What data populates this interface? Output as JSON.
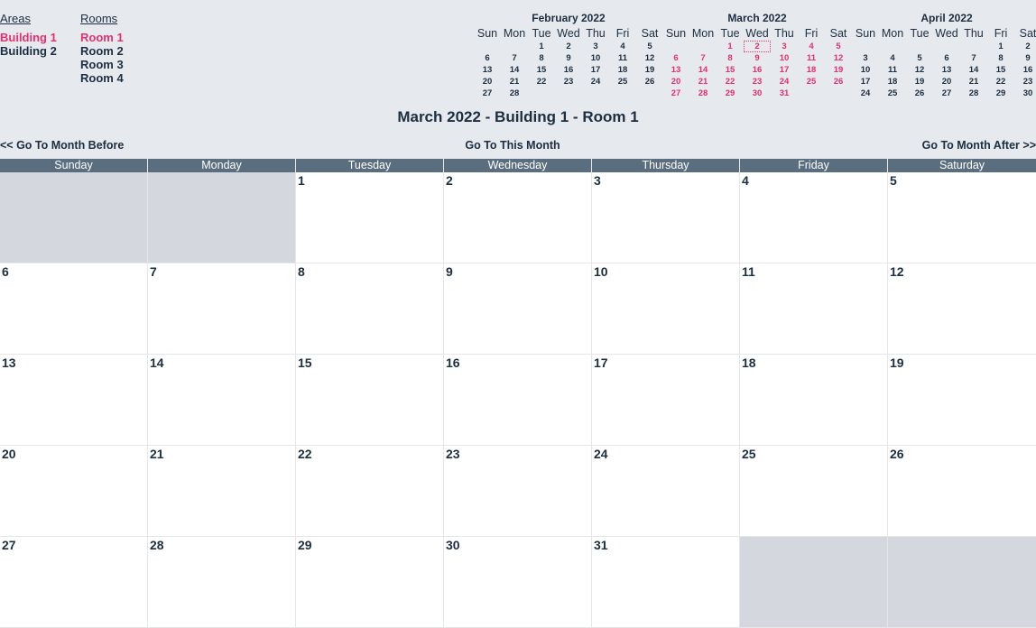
{
  "areas": {
    "heading": "Areas",
    "items": [
      "Building 1",
      "Building 2"
    ]
  },
  "rooms": {
    "heading": "Rooms",
    "items": [
      "Room 1",
      "Room 2",
      "Room 3",
      "Room 4"
    ]
  },
  "mini_calendars": [
    {
      "title": "February 2022",
      "dows": [
        "Sun",
        "Mon",
        "Tue",
        "Wed",
        "Thu",
        "Fri",
        "Sat"
      ],
      "weeks": [
        [
          "",
          "",
          "1",
          "2",
          "3",
          "4",
          "5"
        ],
        [
          "6",
          "7",
          "8",
          "9",
          "10",
          "11",
          "12"
        ],
        [
          "13",
          "14",
          "15",
          "16",
          "17",
          "18",
          "19"
        ],
        [
          "20",
          "21",
          "22",
          "23",
          "24",
          "25",
          "26"
        ],
        [
          "27",
          "28",
          "",
          "",
          "",
          "",
          ""
        ]
      ]
    },
    {
      "title": "March 2022",
      "dows": [
        "Sun",
        "Mon",
        "Tue",
        "Wed",
        "Thu",
        "Fri",
        "Sat"
      ],
      "weeks": [
        [
          "",
          "",
          "1",
          "2",
          "3",
          "4",
          "5"
        ],
        [
          "6",
          "7",
          "8",
          "9",
          "10",
          "11",
          "12"
        ],
        [
          "13",
          "14",
          "15",
          "16",
          "17",
          "18",
          "19"
        ],
        [
          "20",
          "21",
          "22",
          "23",
          "24",
          "25",
          "26"
        ],
        [
          "27",
          "28",
          "29",
          "30",
          "31",
          "",
          ""
        ]
      ]
    },
    {
      "title": "April 2022",
      "dows": [
        "Sun",
        "Mon",
        "Tue",
        "Wed",
        "Thu",
        "Fri",
        "Sat"
      ],
      "weeks": [
        [
          "",
          "",
          "",
          "",
          "",
          "1",
          "2"
        ],
        [
          "3",
          "4",
          "5",
          "6",
          "7",
          "8",
          "9"
        ],
        [
          "10",
          "11",
          "12",
          "13",
          "14",
          "15",
          "16"
        ],
        [
          "17",
          "18",
          "19",
          "20",
          "21",
          "22",
          "23"
        ],
        [
          "24",
          "25",
          "26",
          "27",
          "28",
          "29",
          "30"
        ]
      ]
    }
  ],
  "page_title": "March 2022 - Building 1 - Room 1",
  "nav": {
    "prev": "<< Go To Month Before",
    "current": "Go To This Month",
    "next": "Go To Month After >>"
  },
  "weekdays": [
    "Sunday",
    "Monday",
    "Tuesday",
    "Wednesday",
    "Thursday",
    "Friday",
    "Saturday"
  ],
  "weeks": [
    [
      "",
      "",
      "1",
      "2",
      "3",
      "4",
      "5"
    ],
    [
      "6",
      "7",
      "8",
      "9",
      "10",
      "11",
      "12"
    ],
    [
      "13",
      "14",
      "15",
      "16",
      "17",
      "18",
      "19"
    ],
    [
      "20",
      "21",
      "22",
      "23",
      "24",
      "25",
      "26"
    ],
    [
      "27",
      "28",
      "29",
      "30",
      "31",
      "",
      ""
    ]
  ],
  "colors": {
    "accent": "#e5306d",
    "header_bg": "#5a6e7f",
    "page_bg": "#e6e9ed",
    "empty_cell": "#d4d8de"
  }
}
